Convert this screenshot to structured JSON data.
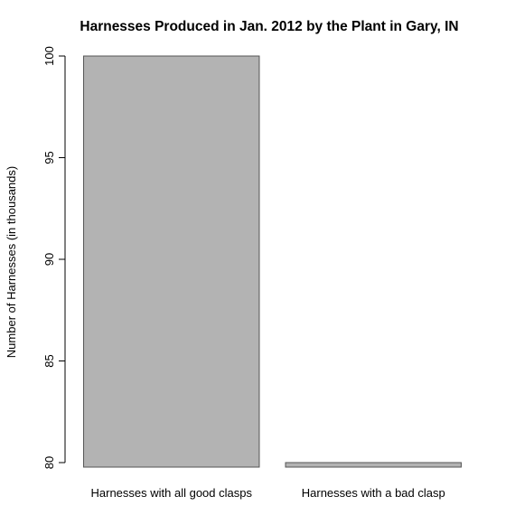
{
  "chart_data": {
    "type": "bar",
    "title": "Harnesses Produced in Jan. 2012 by the Plant in Gary, IN",
    "xlabel": "",
    "ylabel": "Number of Harnesses (in thousands)",
    "categories": [
      "Harnesses with all good clasps",
      "Harnesses with a bad clasp"
    ],
    "values": [
      100,
      80
    ],
    "ylim": [
      80,
      100
    ],
    "yticks": [
      "80",
      "85",
      "90",
      "95",
      "100"
    ],
    "bar_color": "#b3b3b3",
    "bar_border_color": "#555555",
    "grid": false,
    "legend": "none"
  }
}
